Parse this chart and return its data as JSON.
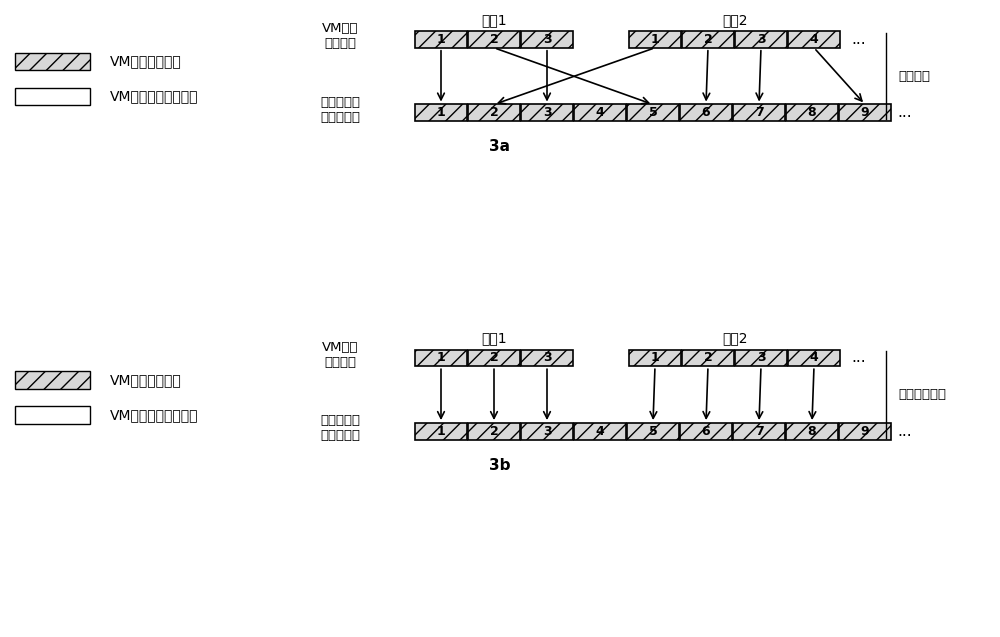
{
  "legend_shaded_label": "VM文件的数据块",
  "legend_white_label": "VM文件系统的数据块",
  "diagram_a_label": "3a",
  "diagram_b_label": "3b",
  "file1_label": "文件1",
  "file2_label": "文件2",
  "vm_data_label": "VM文件\n的数据块",
  "vdisk_label": "文件在虚拟\n磁盘的分布",
  "mapping_label_a": "文件映射",
  "mapping_label_b": "新的文件映射",
  "file1_blocks": [
    "1",
    "2",
    "3"
  ],
  "file2_blocks": [
    "1",
    "2",
    "3",
    "4"
  ],
  "vdisk_nums": [
    "1",
    "2",
    "3",
    "4",
    "5",
    "6",
    "7",
    "8",
    "9"
  ],
  "arrows_a_top": [
    0,
    1,
    2,
    3,
    4,
    5,
    6
  ],
  "arrows_a_bot": [
    0,
    4,
    2,
    1,
    5,
    6,
    8
  ],
  "arrows_b_top": [
    0,
    1,
    2,
    3,
    4,
    5,
    6
  ],
  "arrows_b_bot": [
    0,
    1,
    2,
    4,
    5,
    6,
    7
  ]
}
